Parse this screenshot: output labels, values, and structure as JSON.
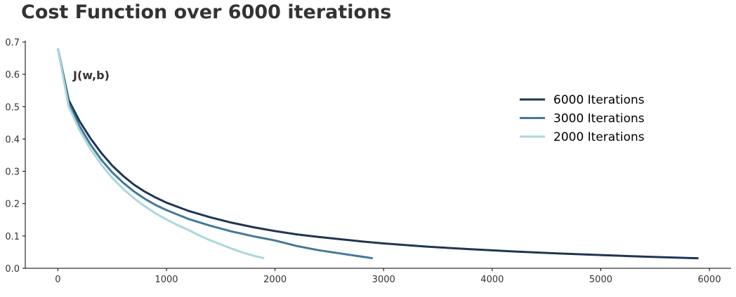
{
  "chart_data": {
    "type": "line",
    "title": "Cost Function over 6000 iterations",
    "xlabel": "",
    "ylabel": "",
    "xlim": [
      -300,
      6200
    ],
    "ylim": [
      0,
      0.7
    ],
    "x_ticks": [
      0,
      1000,
      2000,
      3000,
      4000,
      5000,
      6000
    ],
    "x_tick_labels": [
      "0",
      "1000",
      "2000",
      "3000",
      "4000",
      "5000",
      "6000"
    ],
    "y_ticks": [
      0.0,
      0.1,
      0.2,
      0.3,
      0.4,
      0.5,
      0.6,
      0.7
    ],
    "y_tick_labels": [
      "0.0",
      "0.1",
      "0.2",
      "0.3",
      "0.4",
      "0.5",
      "0.6",
      "0.7"
    ],
    "grid": false,
    "legend_position": "upper-right",
    "annotation": {
      "text": "J(w,b)",
      "x": 140,
      "y": 0.6
    },
    "series": [
      {
        "name": "6000 Iterations",
        "color": "#1f3552",
        "x": [
          0,
          100,
          200,
          300,
          400,
          500,
          600,
          700,
          800,
          900,
          1000,
          1200,
          1400,
          1600,
          1800,
          2000,
          2200,
          2400,
          2600,
          2800,
          3000,
          3400,
          3800,
          4200,
          4600,
          5000,
          5400,
          5900
        ],
        "y": [
          0.68,
          0.52,
          0.455,
          0.402,
          0.357,
          0.318,
          0.286,
          0.259,
          0.237,
          0.219,
          0.203,
          0.178,
          0.158,
          0.141,
          0.127,
          0.115,
          0.105,
          0.097,
          0.09,
          0.083,
          0.077,
          0.067,
          0.059,
          0.052,
          0.046,
          0.041,
          0.036,
          0.031
        ]
      },
      {
        "name": "3000 Iterations",
        "color": "#44789a",
        "x": [
          0,
          100,
          200,
          300,
          400,
          500,
          600,
          700,
          800,
          900,
          1000,
          1200,
          1400,
          1600,
          1800,
          2000,
          2200,
          2400,
          2600,
          2800,
          2900
        ],
        "y": [
          0.68,
          0.51,
          0.44,
          0.383,
          0.336,
          0.297,
          0.265,
          0.238,
          0.215,
          0.196,
          0.18,
          0.153,
          0.132,
          0.114,
          0.099,
          0.086,
          0.069,
          0.056,
          0.046,
          0.036,
          0.031
        ]
      },
      {
        "name": "2000 Iterations",
        "color": "#a8d8dc",
        "x": [
          0,
          100,
          200,
          300,
          400,
          500,
          600,
          700,
          800,
          900,
          1000,
          1100,
          1200,
          1300,
          1400,
          1500,
          1600,
          1700,
          1800,
          1900
        ],
        "y": [
          0.68,
          0.5,
          0.427,
          0.369,
          0.321,
          0.28,
          0.246,
          0.217,
          0.192,
          0.17,
          0.151,
          0.134,
          0.119,
          0.102,
          0.087,
          0.074,
          0.061,
          0.049,
          0.039,
          0.031
        ]
      }
    ]
  }
}
